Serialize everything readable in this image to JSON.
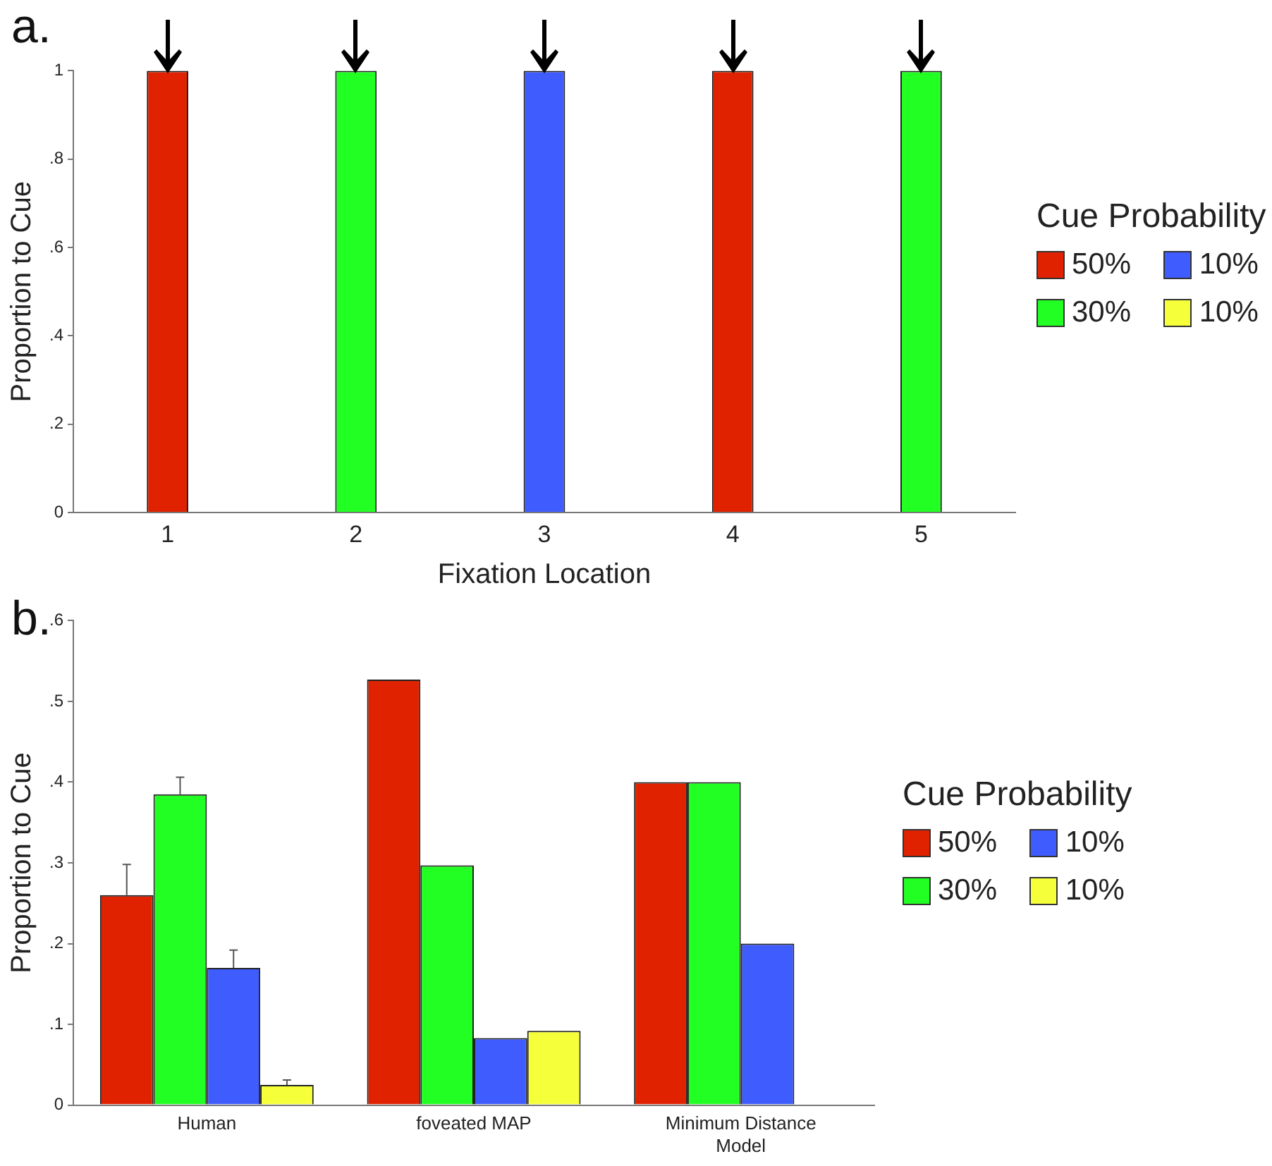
{
  "chart_data": [
    {
      "type": "bar",
      "title": "a.",
      "xlabel": "Fixation Location",
      "ylabel": "Proportion to Cue",
      "legend_title": "Cue Probability",
      "legend": "right",
      "stacked": true,
      "grid": false,
      "categories": [
        "1",
        "2",
        "3",
        "4",
        "5"
      ],
      "ylim": [
        0,
        1
      ],
      "yticks": [
        {
          "value": 0,
          "label": "0"
        },
        {
          "value": 0.2,
          "label": ".2"
        },
        {
          "value": 0.4,
          "label": ".4"
        },
        {
          "value": 0.6,
          "label": ".6"
        },
        {
          "value": 0.8,
          "label": ".8"
        },
        1
      ],
      "series": [
        {
          "name": "50%",
          "color": "#e02200",
          "values": [
            1,
            null,
            null,
            1,
            null
          ]
        },
        {
          "name": "30%",
          "color": "#22ff22",
          "values": [
            null,
            1,
            null,
            null,
            1
          ]
        },
        {
          "name": "10%",
          "color": "#3f5cff",
          "values": [
            null,
            null,
            1,
            null,
            null
          ]
        },
        {
          "name": "10%",
          "color": "#f5ff3a",
          "values": [
            null,
            null,
            null,
            null,
            null
          ]
        }
      ]
    },
    {
      "type": "bar",
      "title": "b.",
      "ylabel": "Proportion to Cue",
      "legend_title": "Cue Probability",
      "legend": "right",
      "grid": false,
      "categories": [
        "Human",
        "foveated MAP",
        "Minimum Distance Model"
      ],
      "ylim": [
        0,
        0.6
      ],
      "yticks": [
        {
          "value": 0,
          "label": "0"
        },
        {
          "value": 0.1,
          "label": ".1"
        },
        {
          "value": 0.2,
          "label": ".2"
        },
        {
          "value": 0.3,
          "label": ".3"
        },
        {
          "value": 0.4,
          "label": ".4"
        },
        {
          "value": 0.5,
          "label": ".5"
        },
        {
          "value": 0.6,
          "label": ".6"
        }
      ],
      "series": [
        {
          "name": "50%",
          "color": "#e02200",
          "values": [
            0.26,
            0.527,
            0.4
          ],
          "errors": [
            [
              0.26,
              0.298
            ],
            null,
            null
          ]
        },
        {
          "name": "30%",
          "color": "#22ff22",
          "values": [
            0.385,
            0.297,
            0.4
          ],
          "errors": [
            [
              0.385,
              0.406
            ],
            null,
            null
          ]
        },
        {
          "name": "10%",
          "color": "#3f5cff",
          "values": [
            0.17,
            0.083,
            0.2
          ],
          "errors": [
            [
              0.17,
              0.192
            ],
            null,
            null
          ]
        },
        {
          "name": "10%",
          "color": "#f5ff3a",
          "values": [
            0.025,
            0.092,
            null
          ],
          "errors": [
            [
              0.025,
              0.031
            ],
            null,
            null
          ]
        }
      ]
    }
  ]
}
